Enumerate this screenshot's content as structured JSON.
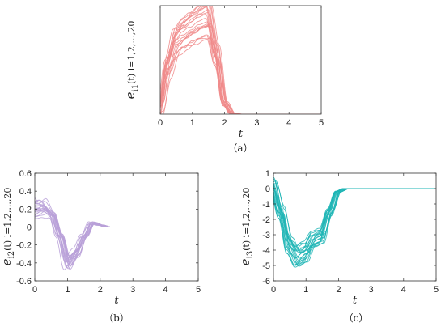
{
  "chart_data": [
    {
      "type": "line",
      "panel_label": "（a）",
      "xlabel": "t",
      "ylabel": "e_i1(t) i=1,2,...,20",
      "ylabel_main": "e",
      "ylabel_sub": "i1",
      "ylabel_args": "(t) i=1,2,...,20",
      "xlim": [
        0,
        5
      ],
      "ylim": [
        0,
        4
      ],
      "xticks": [
        "0",
        "1",
        "2",
        "3",
        "4",
        "5"
      ],
      "yticks": [],
      "color": "#f08a8a",
      "series_count": 20,
      "x": [
        0,
        0.25,
        0.5,
        0.75,
        1.0,
        1.25,
        1.5,
        1.75,
        2.0,
        2.25,
        2.5,
        3,
        4,
        5
      ],
      "mean": [
        0.2,
        1.8,
        2.7,
        3.0,
        3.2,
        3.4,
        3.5,
        2.2,
        0.4,
        0.02,
        0,
        0,
        0,
        0
      ]
    },
    {
      "type": "line",
      "panel_label": "（b）",
      "xlabel": "t",
      "ylabel": "e_i2(t) i=1,2,...,20",
      "ylabel_main": "e",
      "ylabel_sub": "i2",
      "ylabel_args": "(t) i=1,2,...,20",
      "xlim": [
        0,
        5
      ],
      "ylim": [
        -0.6,
        0.6
      ],
      "xticks": [
        "0",
        "1",
        "2",
        "3",
        "4",
        "5"
      ],
      "yticks": [
        "0.6",
        "0.4",
        "0.2",
        "0",
        "-0.2",
        "-0.4",
        "-0.6"
      ],
      "color": "#b9a0d8",
      "series_count": 20,
      "x": [
        0,
        0.25,
        0.5,
        0.75,
        1.0,
        1.25,
        1.5,
        1.75,
        2.0,
        2.25,
        2.5,
        3,
        4,
        5
      ],
      "mean": [
        0.2,
        0.22,
        0.15,
        -0.1,
        -0.4,
        -0.3,
        -0.1,
        0.05,
        0.02,
        0,
        0,
        0,
        0,
        0
      ]
    },
    {
      "type": "line",
      "panel_label": "（c）",
      "xlabel": "t",
      "ylabel": "e_i3(t) i=1,2,...,20",
      "ylabel_main": "e",
      "ylabel_sub": "i3",
      "ylabel_args": "(t) i=1,2,...,20",
      "xlim": [
        0,
        5
      ],
      "ylim": [
        -6,
        1
      ],
      "xticks": [
        "0",
        "1",
        "2",
        "3",
        "4",
        "5"
      ],
      "yticks": [
        "1",
        "0",
        "-1",
        "-2",
        "-3",
        "-4",
        "-5",
        "-6"
      ],
      "color": "#1fb5b5",
      "series_count": 20,
      "x": [
        0,
        0.25,
        0.5,
        0.75,
        1.0,
        1.25,
        1.5,
        1.75,
        2.0,
        2.25,
        2.5,
        3,
        4,
        5
      ],
      "mean": [
        0.2,
        -1.5,
        -3.5,
        -4.3,
        -4.0,
        -3.2,
        -3.0,
        -1.5,
        -0.2,
        0,
        0,
        0,
        0,
        0
      ]
    }
  ]
}
